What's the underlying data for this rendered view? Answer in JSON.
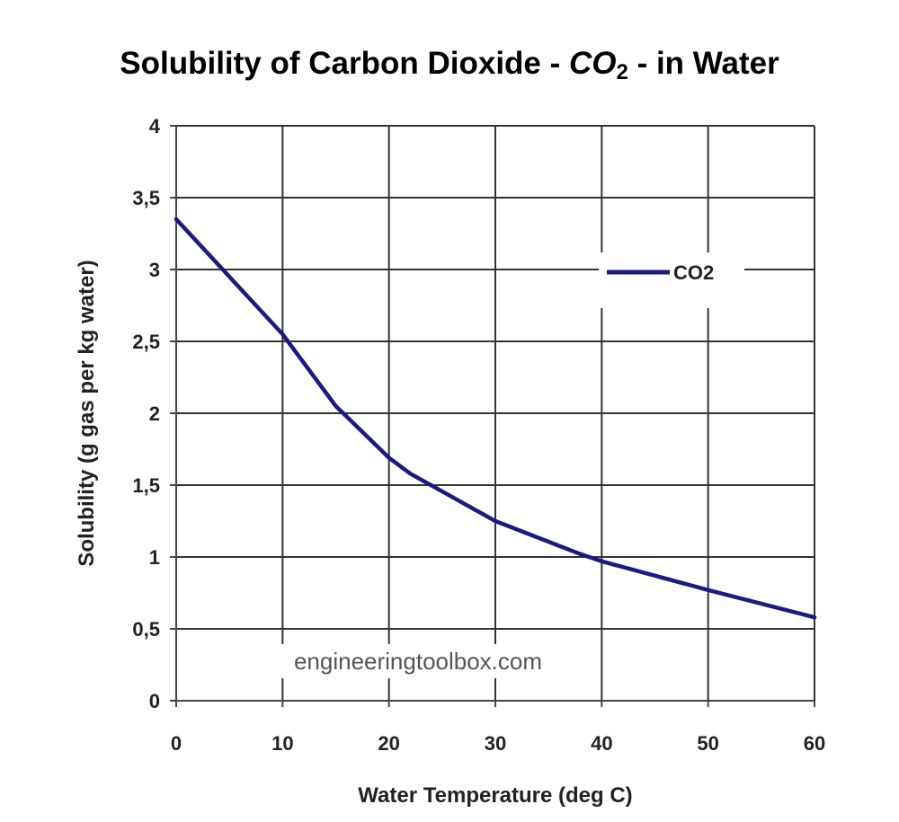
{
  "chart_data": {
    "type": "line",
    "title_main": "Solubility of Carbon Dioxide - ",
    "title_formula": "CO",
    "title_subscript": "2",
    "title_end": " - in Water",
    "xlabel": "Water Temperature (deg C)",
    "ylabel": "Solubility (g gas per kg water)",
    "xlim": [
      0,
      60
    ],
    "ylim": [
      0,
      4
    ],
    "x_ticks": [
      0,
      10,
      20,
      30,
      40,
      50,
      60
    ],
    "x_tick_labels": [
      "0",
      "10",
      "20",
      "30",
      "40",
      "50",
      "60"
    ],
    "y_ticks": [
      0,
      0.5,
      1,
      1.5,
      2,
      2.5,
      3,
      3.5,
      4
    ],
    "y_tick_labels": [
      "0",
      "0,5",
      "1",
      "1,5",
      "2",
      "2,5",
      "3",
      "3,5",
      "4"
    ],
    "grid": true,
    "legend_position": "top-right",
    "series": [
      {
        "name": "CO2",
        "color": "#1a1a80",
        "x": [
          0,
          10,
          15,
          20,
          22,
          30,
          38,
          40,
          50,
          60
        ],
        "y": [
          3.35,
          2.55,
          2.05,
          1.69,
          1.58,
          1.25,
          1.02,
          0.97,
          0.77,
          0.58
        ]
      }
    ],
    "watermark": "engineeringtoolbox.com"
  }
}
